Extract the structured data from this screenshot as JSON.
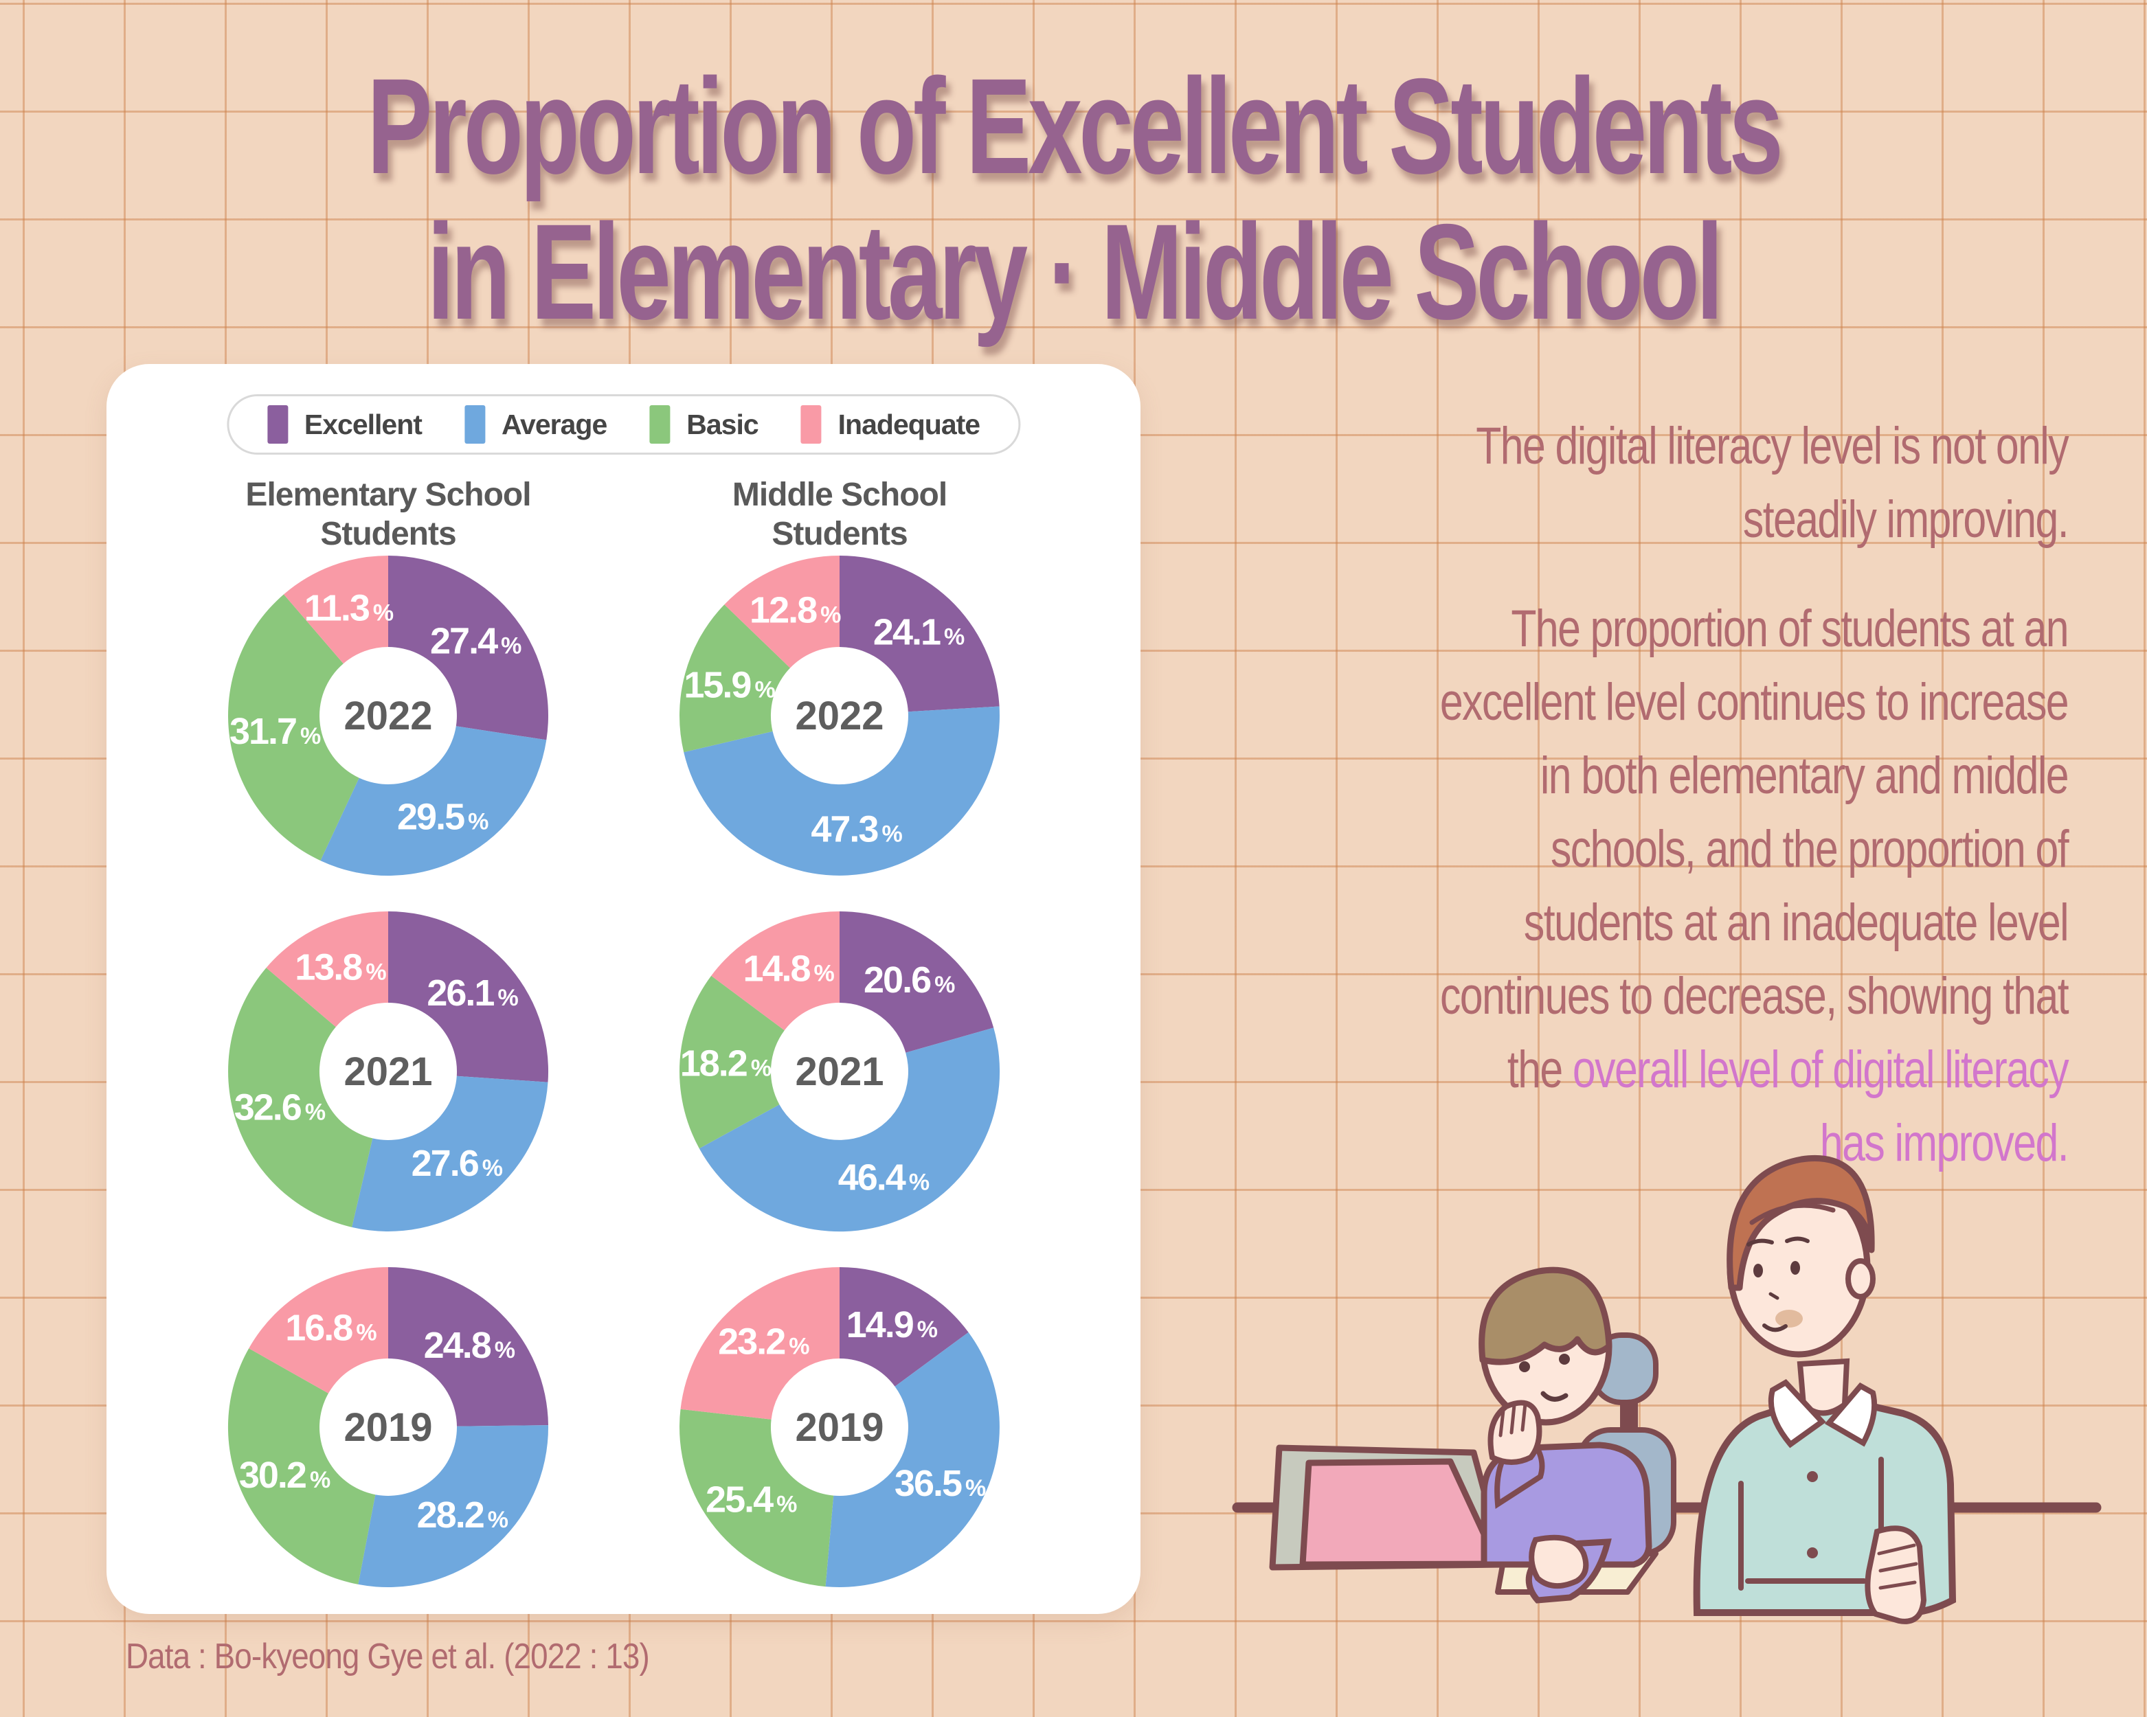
{
  "title": {
    "line1": "Proportion of Excellent Students",
    "line2": "in Elementary · Middle School"
  },
  "legend": {
    "items": [
      {
        "label": "Excellent",
        "color": "#8b5f9e"
      },
      {
        "label": "Average",
        "color": "#6fa8de"
      },
      {
        "label": "Basic",
        "color": "#8bc77c"
      },
      {
        "label": "Inadequate",
        "color": "#f99aa6"
      }
    ]
  },
  "columns": [
    {
      "line1": "Elementary School",
      "line2": "Students"
    },
    {
      "line1": "Middle School",
      "line2": "Students"
    }
  ],
  "chart_data": {
    "type": "pie",
    "variant": "donut",
    "title": "Proportion of Excellent Students in Elementary · Middle School",
    "legend_position": "top",
    "unit": "%",
    "categories": [
      "Excellent",
      "Average",
      "Basic",
      "Inadequate"
    ],
    "colors": [
      "#8b5f9e",
      "#6fa8de",
      "#8bc77c",
      "#f99aa6"
    ],
    "donuts": [
      {
        "school": "Elementary School Students",
        "year": "2022",
        "values": [
          27.4,
          29.5,
          31.7,
          11.3
        ]
      },
      {
        "school": "Middle School Students",
        "year": "2022",
        "values": [
          24.1,
          47.3,
          15.9,
          12.8
        ]
      },
      {
        "school": "Elementary School Students",
        "year": "2021",
        "values": [
          26.1,
          27.6,
          32.6,
          13.8
        ]
      },
      {
        "school": "Middle School Students",
        "year": "2021",
        "values": [
          20.6,
          46.4,
          18.2,
          14.8
        ]
      },
      {
        "school": "Elementary School Students",
        "year": "2019",
        "values": [
          24.8,
          28.2,
          30.2,
          16.8
        ]
      },
      {
        "school": "Middle School Students",
        "year": "2019",
        "values": [
          14.9,
          36.5,
          25.4,
          23.2
        ]
      }
    ]
  },
  "sidebar_text": {
    "para1_lines": [
      [
        {
          "t": "The digital literacy level is not only"
        }
      ],
      [
        {
          "t": "steadily improving."
        }
      ]
    ],
    "para2_lines": [
      [
        {
          "t": "The proportion of students at an"
        }
      ],
      [
        {
          "t": "excellent level continues to increase"
        }
      ],
      [
        {
          "t": "in both elementary and middle"
        }
      ],
      [
        {
          "t": "schools, and the proportion of"
        }
      ],
      [
        {
          "t": "students at an inadequate level"
        }
      ],
      [
        {
          "t": "continues to decrease, showing that"
        }
      ],
      [
        {
          "t": "the "
        },
        {
          "t": "overall level of digital literacy",
          "hl": true
        }
      ],
      [
        {
          "t": "has improved.",
          "hl": true
        }
      ]
    ],
    "highlight_color": "#d276cc",
    "text_color": "#b16b70"
  },
  "footer": {
    "source": "Data : Bo-kyeong Gye et al. (2022 : 13)"
  },
  "colors": {
    "background": "#f2d6bf",
    "grid_line": "#cb7d46",
    "card": "#ffffff",
    "title": "#96638f",
    "donut_label": "#ffffff",
    "year_label": "#5e5e5e",
    "header_gray": "#595959",
    "illustration_outline": "#7e4b4f",
    "child_shirt": "#a89ae1",
    "adult_shirt": "#bfdfd9",
    "chair": "#a3b7ca",
    "laptop_gray": "#c7cabe",
    "laptop_pink": "#f2a9ba",
    "paper": "#f8eed3",
    "skin": "#fde7db",
    "child_hair": "#a98e68",
    "adult_hair": "#bf7252"
  },
  "illustration": {
    "description": "child in purple shirt writing on paper beside laptop, adult in teal shirt with crossed arms watching at a desk"
  }
}
